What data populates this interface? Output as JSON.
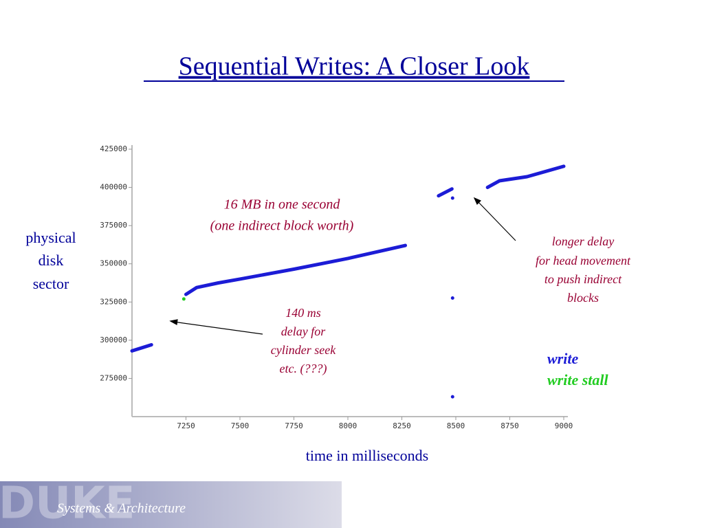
{
  "chart_data": {
    "type": "line",
    "title": "Sequential Writes: A Closer Look",
    "x_label": "time in milliseconds",
    "y_label": [
      "physical",
      "disk",
      "sector"
    ],
    "xlim": [
      7000,
      9000
    ],
    "xticks": [
      7250,
      7500,
      7750,
      8000,
      8250,
      8500,
      8750,
      9000
    ],
    "ylim": [
      250000,
      425000
    ],
    "yticks": [
      275000,
      300000,
      325000,
      350000,
      375000,
      400000,
      425000
    ],
    "series": [
      {
        "name": "write",
        "color": "#1c1cd6",
        "x": [
          7000,
          7090,
          null,
          7250,
          7300,
          7400,
          7500,
          7750,
          8000,
          8266,
          null,
          8420,
          8482,
          null,
          8485,
          null,
          8485,
          null,
          8485,
          null,
          8647,
          8702,
          8830,
          9000
        ],
        "values": [
          293000,
          297000,
          null,
          330000,
          334500,
          337500,
          340000,
          346500,
          353500,
          362000,
          null,
          394500,
          399000,
          null,
          393000,
          null,
          327600,
          null,
          263000,
          null,
          400000,
          404300,
          407000,
          413800
        ]
      },
      {
        "name": "write stall",
        "color": "#22cc22",
        "x": [
          7240
        ],
        "values": [
          327000
        ]
      }
    ],
    "annotations": [
      {
        "lines": [
          "16 MB in one second",
          "(one indirect block worth)"
        ]
      },
      {
        "lines": [
          "140 ms",
          "delay for",
          "cylinder seek",
          "etc. (???)"
        ]
      },
      {
        "lines": [
          "longer delay",
          "for head movement",
          "to push indirect",
          "blocks"
        ]
      }
    ]
  },
  "footer": {
    "logo": "DUKE",
    "text": "Systems & Architecture"
  }
}
